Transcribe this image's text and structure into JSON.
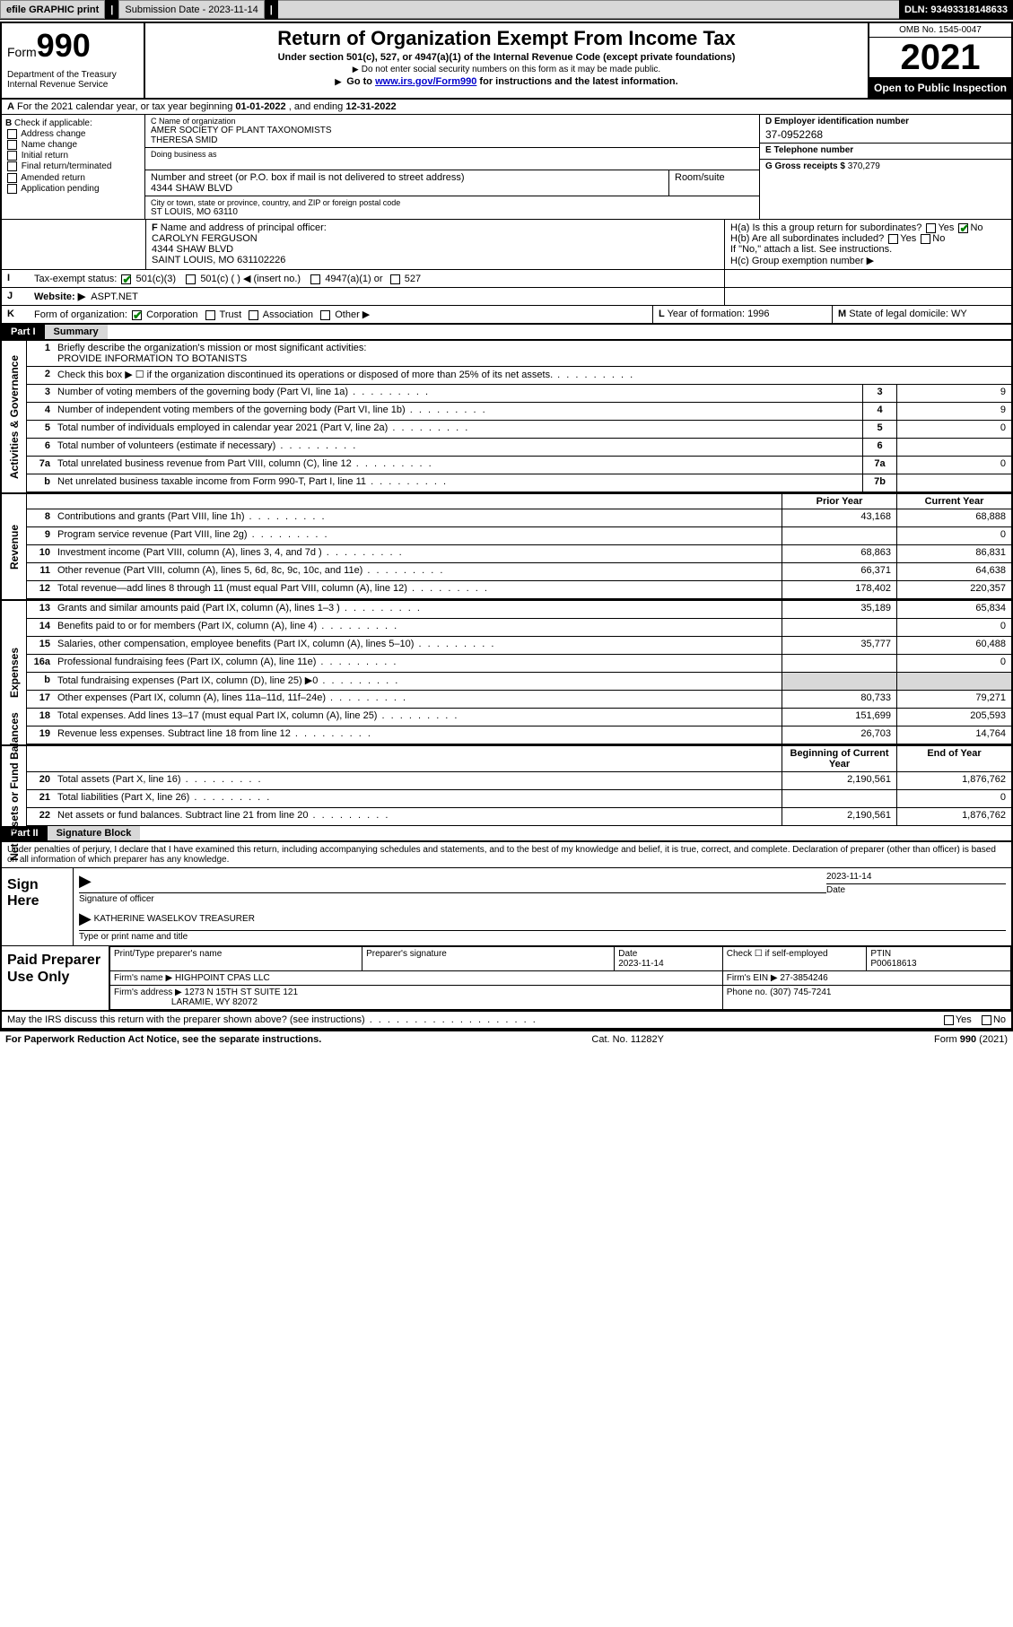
{
  "toolbar": {
    "efile": "efile GRAPHIC print",
    "sub_label": "Submission Date - 2023-11-14",
    "dln": "DLN: 93493318148633"
  },
  "header": {
    "form_word": "Form",
    "form_num": "990",
    "title": "Return of Organization Exempt From Income Tax",
    "subtitle": "Under section 501(c), 527, or 4947(a)(1) of the Internal Revenue Code (except private foundations)",
    "note1": "Do not enter social security numbers on this form as it may be made public.",
    "goto_pre": "Go to ",
    "goto_link": "www.irs.gov/Form990",
    "goto_post": " for instructions and the latest information.",
    "dept": "Department of the Treasury\nInternal Revenue Service",
    "omb": "OMB No. 1545-0047",
    "year": "2021",
    "open": "Open to Public Inspection"
  },
  "rowA": {
    "text_pre": "For the 2021 calendar year, or tax year beginning ",
    "begin": "01-01-2022",
    "mid": " , and ending ",
    "end": "12-31-2022",
    "label": "A"
  },
  "boxB": {
    "label": "B",
    "intro": "Check if applicable:",
    "opts": [
      "Address change",
      "Name change",
      "Initial return",
      "Final return/terminated",
      "Amended return",
      "Application pending"
    ]
  },
  "boxC": {
    "name_lab": "C Name of organization",
    "name1": "AMER SOCIETY OF PLANT TAXONOMISTS",
    "name2": "THERESA SMID",
    "dba_lab": "Doing business as",
    "addr_lab": "Number and street (or P.O. box if mail is not delivered to street address)",
    "room_lab": "Room/suite",
    "addr": "4344 SHAW BLVD",
    "city_lab": "City or town, state or province, country, and ZIP or foreign postal code",
    "city": "ST LOUIS, MO  63110"
  },
  "boxD": {
    "lab": "D Employer identification number",
    "val": "37-0952268"
  },
  "boxE": {
    "lab": "E Telephone number",
    "val": ""
  },
  "boxG": {
    "lab": "G Gross receipts $",
    "val": "370,279"
  },
  "rowF": {
    "lab": "F",
    "text": "Name and address of principal officer:",
    "l1": "CAROLYN FERGUSON",
    "l2": "4344 SHAW BLVD",
    "l3": "SAINT LOUIS, MO  631102226"
  },
  "rowH": {
    "a": "H(a)  Is this a group return for subordinates?",
    "b": "H(b)  Are all subordinates included?",
    "b2": "If \"No,\" attach a list. See instructions.",
    "c": "H(c)  Group exemption number ▶",
    "yes": "Yes",
    "no": "No"
  },
  "rowI": {
    "lab": "I",
    "text": "Tax-exempt status:",
    "o1": "501(c)(3)",
    "o2": "501(c) (  ) ◀ (insert no.)",
    "o3": "4947(a)(1) or",
    "o4": "527"
  },
  "rowJ": {
    "lab": "J",
    "text": "Website: ▶",
    "val": "ASPT.NET"
  },
  "rowK": {
    "lab": "K",
    "text": "Form of organization:",
    "o1": "Corporation",
    "o2": "Trust",
    "o3": "Association",
    "o4": "Other ▶"
  },
  "rowL": {
    "lab": "L",
    "text": "Year of formation: 1996"
  },
  "rowM": {
    "lab": "M",
    "text": "State of legal domicile: WY"
  },
  "part1": {
    "num": "Part I",
    "title": "Summary"
  },
  "summary": {
    "sections": [
      {
        "label": "Activities & Governance",
        "rows": [
          {
            "n": "1",
            "t": "Briefly describe the organization's mission or most significant activities:",
            "mission": "PROVIDE INFORMATION TO BOTANISTS"
          },
          {
            "n": "2",
            "t": "Check this box ▶ ☐  if the organization discontinued its operations or disposed of more than 25% of its net assets."
          },
          {
            "n": "3",
            "t": "Number of voting members of the governing body (Part VI, line 1a)",
            "bx": "3",
            "cur": "9"
          },
          {
            "n": "4",
            "t": "Number of independent voting members of the governing body (Part VI, line 1b)",
            "bx": "4",
            "cur": "9"
          },
          {
            "n": "5",
            "t": "Total number of individuals employed in calendar year 2021 (Part V, line 2a)",
            "bx": "5",
            "cur": "0"
          },
          {
            "n": "6",
            "t": "Total number of volunteers (estimate if necessary)",
            "bx": "6",
            "cur": ""
          },
          {
            "n": "7a",
            "t": "Total unrelated business revenue from Part VIII, column (C), line 12",
            "bx": "7a",
            "cur": "0"
          },
          {
            "n": "b",
            "t": "Net unrelated business taxable income from Form 990-T, Part I, line 11",
            "bx": "7b",
            "cur": ""
          }
        ]
      },
      {
        "label": "Revenue",
        "header": {
          "prior": "Prior Year",
          "cur": "Current Year"
        },
        "rows": [
          {
            "n": "8",
            "t": "Contributions and grants (Part VIII, line 1h)",
            "prior": "43,168",
            "cur": "68,888"
          },
          {
            "n": "9",
            "t": "Program service revenue (Part VIII, line 2g)",
            "prior": "",
            "cur": "0"
          },
          {
            "n": "10",
            "t": "Investment income (Part VIII, column (A), lines 3, 4, and 7d )",
            "prior": "68,863",
            "cur": "86,831"
          },
          {
            "n": "11",
            "t": "Other revenue (Part VIII, column (A), lines 5, 6d, 8c, 9c, 10c, and 11e)",
            "prior": "66,371",
            "cur": "64,638"
          },
          {
            "n": "12",
            "t": "Total revenue—add lines 8 through 11 (must equal Part VIII, column (A), line 12)",
            "prior": "178,402",
            "cur": "220,357"
          }
        ]
      },
      {
        "label": "Expenses",
        "rows": [
          {
            "n": "13",
            "t": "Grants and similar amounts paid (Part IX, column (A), lines 1–3 )",
            "prior": "35,189",
            "cur": "65,834"
          },
          {
            "n": "14",
            "t": "Benefits paid to or for members (Part IX, column (A), line 4)",
            "prior": "",
            "cur": "0"
          },
          {
            "n": "15",
            "t": "Salaries, other compensation, employee benefits (Part IX, column (A), lines 5–10)",
            "prior": "35,777",
            "cur": "60,488"
          },
          {
            "n": "16a",
            "t": "Professional fundraising fees (Part IX, column (A), line 11e)",
            "prior": "",
            "cur": "0"
          },
          {
            "n": "b",
            "t": "Total fundraising expenses (Part IX, column (D), line 25) ▶0",
            "shade": true
          },
          {
            "n": "17",
            "t": "Other expenses (Part IX, column (A), lines 11a–11d, 11f–24e)",
            "prior": "80,733",
            "cur": "79,271"
          },
          {
            "n": "18",
            "t": "Total expenses. Add lines 13–17 (must equal Part IX, column (A), line 25)",
            "prior": "151,699",
            "cur": "205,593"
          },
          {
            "n": "19",
            "t": "Revenue less expenses. Subtract line 18 from line 12",
            "prior": "26,703",
            "cur": "14,764"
          }
        ]
      },
      {
        "label": "Net Assets or Fund Balances",
        "header": {
          "prior": "Beginning of Current Year",
          "cur": "End of Year"
        },
        "rows": [
          {
            "n": "20",
            "t": "Total assets (Part X, line 16)",
            "prior": "2,190,561",
            "cur": "1,876,762"
          },
          {
            "n": "21",
            "t": "Total liabilities (Part X, line 26)",
            "prior": "",
            "cur": "0"
          },
          {
            "n": "22",
            "t": "Net assets or fund balances. Subtract line 21 from line 20",
            "prior": "2,190,561",
            "cur": "1,876,762"
          }
        ]
      }
    ]
  },
  "part2": {
    "num": "Part II",
    "title": "Signature Block"
  },
  "penalty": "Under penalties of perjury, I declare that I have examined this return, including accompanying schedules and statements, and to the best of my knowledge and belief, it is true, correct, and complete. Declaration of preparer (other than officer) is based on all information of which preparer has any knowledge.",
  "sign": {
    "here": "Sign Here",
    "sig_lab": "Signature of officer",
    "date_lab": "Date",
    "date": "2023-11-14",
    "name": "KATHERINE WASELKOV  TREASURER",
    "name_lab": "Type or print name and title"
  },
  "prep": {
    "title": "Paid Preparer Use Only",
    "h1": "Print/Type preparer's name",
    "h2": "Preparer's signature",
    "h3": "Date",
    "h4": "Check ☐ if self-employed",
    "h5": "PTIN",
    "date": "2023-11-14",
    "ptin": "P00618613",
    "firm_lab": "Firm's name   ▶",
    "firm": "HIGHPOINT CPAS LLC",
    "ein_lab": "Firm's EIN ▶",
    "ein": "27-3854246",
    "addr_lab": "Firm's address ▶",
    "addr1": "1273 N 15TH ST SUITE 121",
    "addr2": "LARAMIE, WY  82072",
    "phone_lab": "Phone no.",
    "phone": "(307) 745-7241"
  },
  "may": {
    "text": "May the IRS discuss this return with the preparer shown above? (see instructions)",
    "yes": "Yes",
    "no": "No"
  },
  "footer": {
    "left": "For Paperwork Reduction Act Notice, see the separate instructions.",
    "mid": "Cat. No. 11282Y",
    "right": "Form 990 (2021)"
  }
}
